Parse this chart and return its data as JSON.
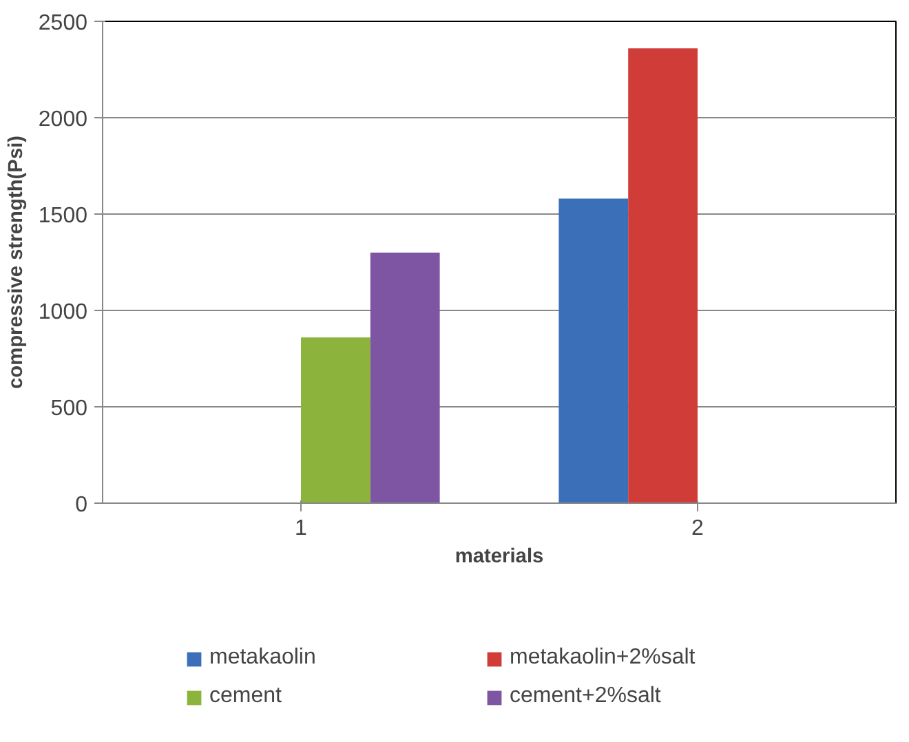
{
  "chart_data": {
    "type": "bar",
    "xlabel": "materials",
    "ylabel": "compressive strength(Psi)",
    "categories": [
      "1",
      "2"
    ],
    "series": [
      {
        "name": "metakaolin",
        "color": "#3b70b9",
        "values": [
          null,
          1580
        ]
      },
      {
        "name": "metakaolin+2%salt",
        "color": "#d03c38",
        "values": [
          null,
          2360
        ]
      },
      {
        "name": "cement",
        "color": "#8cb43c",
        "values": [
          860,
          null
        ]
      },
      {
        "name": "cement+2%salt",
        "color": "#7d55a3",
        "values": [
          1300,
          null
        ]
      }
    ],
    "ylim": [
      0,
      2500
    ],
    "yticks": [
      0,
      500,
      1000,
      1500,
      2000,
      2500
    ],
    "grid": "y",
    "legend": "bottom"
  }
}
